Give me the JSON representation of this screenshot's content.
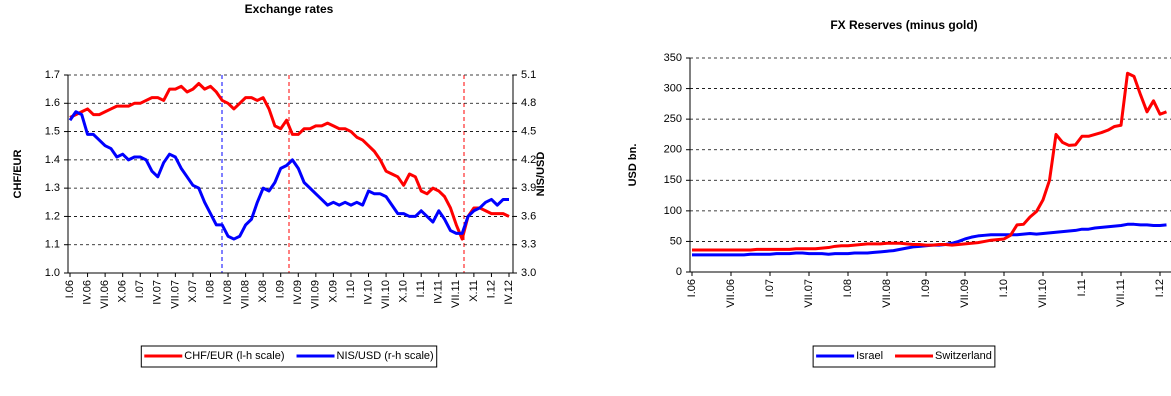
{
  "chart_data": [
    {
      "type": "line",
      "title": "Exchange rates",
      "ylabel": "CHF/EUR",
      "y2label": "NIS/USD",
      "legend": "bottom",
      "grid": true,
      "categories": [
        "I.06",
        null,
        null,
        "IV.06",
        null,
        null,
        "VII.06",
        null,
        null,
        "X.06",
        null,
        null,
        "I.07",
        null,
        null,
        "IV.07",
        null,
        null,
        "VII.07",
        null,
        null,
        "X.07",
        null,
        null,
        "I.08",
        null,
        null,
        "IV.08",
        null,
        null,
        "VII.08",
        null,
        null,
        "X.08",
        null,
        null,
        "I.09",
        null,
        null,
        "IV.09",
        null,
        null,
        "VII.09",
        null,
        null,
        "X.09",
        null,
        null,
        "I.10",
        null,
        null,
        "IV.10",
        null,
        null,
        "VII.10",
        null,
        null,
        "X.10",
        null,
        null,
        "I.11",
        null,
        null,
        "IV.11",
        null,
        null,
        "VII.11",
        null,
        null,
        "X.11",
        null,
        null,
        "I.12",
        null,
        null,
        "IV.12"
      ],
      "ylim": [
        1,
        1.7
      ],
      "yticks": [
        {
          "value": 1,
          "label": "1.0"
        },
        1.1,
        1.2,
        1.3,
        1.4,
        1.5,
        1.6,
        1.7
      ],
      "y2lim": [
        3,
        5.1
      ],
      "y2ticks": [
        {
          "value": 3,
          "label": "3.0"
        },
        3.3,
        3.6,
        3.9,
        4.2,
        4.5,
        4.8,
        5.1
      ],
      "series": [
        {
          "name": "CHF/EUR (l-h scale)",
          "color": "#ff0000",
          "axis": "y",
          "values": [
            1.55,
            1.56,
            1.57,
            1.58,
            1.56,
            1.56,
            1.57,
            1.58,
            1.59,
            1.59,
            1.59,
            1.6,
            1.6,
            1.61,
            1.62,
            1.62,
            1.61,
            1.65,
            1.65,
            1.66,
            1.64,
            1.65,
            1.67,
            1.65,
            1.66,
            1.64,
            1.61,
            1.6,
            1.58,
            1.6,
            1.62,
            1.62,
            1.61,
            1.62,
            1.58,
            1.52,
            1.51,
            1.54,
            1.49,
            1.49,
            1.51,
            1.51,
            1.52,
            1.52,
            1.53,
            1.52,
            1.51,
            1.51,
            1.5,
            1.48,
            1.47,
            1.45,
            1.43,
            1.4,
            1.36,
            1.35,
            1.34,
            1.31,
            1.35,
            1.34,
            1.29,
            1.28,
            1.3,
            1.29,
            1.27,
            1.23,
            1.17,
            1.12,
            1.2,
            1.23,
            1.23,
            1.22,
            1.21,
            1.21,
            1.21,
            1.2
          ]
        },
        {
          "name": "NIS/USD (r-h scale)",
          "color": "#0000ff",
          "axis": "y2",
          "values": [
            4.62,
            4.71,
            4.68,
            4.47,
            4.47,
            4.41,
            4.35,
            4.32,
            4.23,
            4.26,
            4.2,
            4.23,
            4.23,
            4.2,
            4.08,
            4.02,
            4.17,
            4.26,
            4.23,
            4.11,
            4.02,
            3.93,
            3.9,
            3.75,
            3.63,
            3.51,
            3.51,
            3.39,
            3.36,
            3.39,
            3.51,
            3.57,
            3.75,
            3.9,
            3.87,
            3.96,
            4.11,
            4.14,
            4.2,
            4.11,
            3.96,
            3.9,
            3.84,
            3.78,
            3.72,
            3.75,
            3.72,
            3.75,
            3.72,
            3.75,
            3.72,
            3.87,
            3.84,
            3.84,
            3.81,
            3.72,
            3.63,
            3.63,
            3.6,
            3.6,
            3.66,
            3.6,
            3.54,
            3.66,
            3.57,
            3.45,
            3.42,
            3.42,
            3.6,
            3.66,
            3.69,
            3.75,
            3.78,
            3.72,
            3.78,
            3.78
          ]
        }
      ]
    },
    {
      "type": "line",
      "title": "FX Reserves (minus gold)",
      "ylabel": "USD bn.",
      "legend": "bottom",
      "grid": true,
      "categories": [
        "I.06",
        null,
        null,
        null,
        null,
        null,
        "VII.06",
        null,
        null,
        null,
        null,
        null,
        "I.07",
        null,
        null,
        null,
        null,
        null,
        "VII.07",
        null,
        null,
        null,
        null,
        null,
        "I.08",
        null,
        null,
        null,
        null,
        null,
        "VII.08",
        null,
        null,
        null,
        null,
        null,
        "I.09",
        null,
        null,
        null,
        null,
        null,
        "VII.09",
        null,
        null,
        null,
        null,
        null,
        "I.10",
        null,
        null,
        null,
        null,
        null,
        "VII.10",
        null,
        null,
        null,
        null,
        null,
        "I.11",
        null,
        null,
        null,
        null,
        null,
        "VII.11",
        null,
        null,
        null,
        null,
        null,
        "I.12",
        null
      ],
      "ylim": [
        0,
        350
      ],
      "yticks": [
        0,
        50,
        100,
        150,
        200,
        250,
        300,
        350
      ],
      "series": [
        {
          "name": "Israel",
          "color": "#0000ff",
          "values": [
            28,
            28,
            28,
            28,
            28,
            28,
            28,
            28,
            28,
            29,
            29,
            29,
            29,
            30,
            30,
            30,
            31,
            31,
            30,
            30,
            30,
            29,
            30,
            30,
            30,
            31,
            31,
            31,
            32,
            33,
            34,
            35,
            37,
            39,
            41,
            42,
            43,
            44,
            44,
            45,
            47,
            50,
            54,
            57,
            59,
            60,
            61,
            61,
            61,
            61,
            61,
            62,
            63,
            62,
            63,
            64,
            65,
            66,
            67,
            68,
            70,
            70,
            72,
            73,
            74,
            75,
            76,
            78,
            78,
            77,
            77,
            76,
            76,
            77
          ]
        },
        {
          "name": "Switzerland",
          "color": "#ff0000",
          "values": [
            36,
            36,
            36,
            36,
            36,
            36,
            36,
            36,
            36,
            36,
            37,
            37,
            37,
            37,
            37,
            37,
            38,
            38,
            38,
            38,
            39,
            40,
            42,
            43,
            43,
            44,
            45,
            46,
            46,
            46,
            47,
            47,
            47,
            46,
            45,
            45,
            44,
            44,
            45,
            45,
            44,
            45,
            46,
            47,
            48,
            50,
            52,
            53,
            54,
            60,
            77,
            78,
            90,
            99,
            118,
            150,
            225,
            212,
            207,
            208,
            222,
            222,
            225,
            228,
            232,
            238,
            240,
            325,
            320,
            290,
            262,
            280,
            258,
            262
          ]
        }
      ]
    }
  ]
}
